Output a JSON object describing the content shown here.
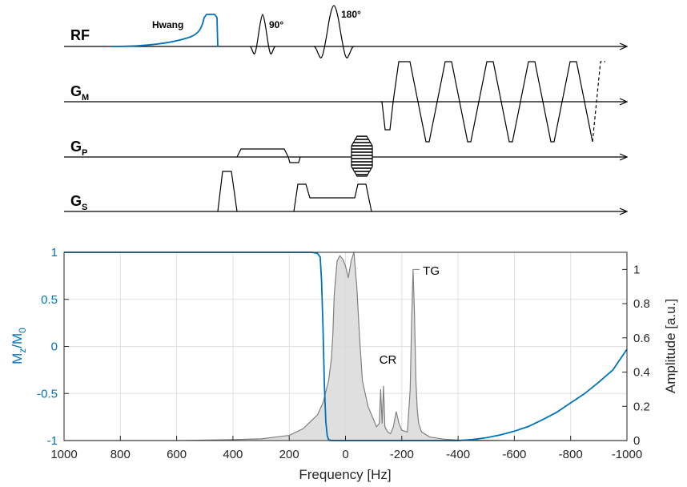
{
  "sequence": {
    "channels": [
      {
        "id": "rf",
        "main": "RF",
        "sub": ""
      },
      {
        "id": "gm",
        "main": "G",
        "sub": "M"
      },
      {
        "id": "gp",
        "main": "G",
        "sub": "P"
      },
      {
        "id": "gs",
        "main": "G",
        "sub": "S"
      }
    ],
    "pulses": {
      "hwang": "Hwang",
      "p90": "90°",
      "p180": "180°"
    }
  },
  "colors": {
    "mz_curve": "#0072BD",
    "spectrum_line": "#808080",
    "spectrum_fill": "#d9d9d9",
    "grid": "#e0e0e0"
  },
  "chart_data": {
    "type": "line",
    "xlabel": "Frequency [Hz]",
    "ylabel_left_main": "M",
    "ylabel_left_sub1": "z",
    "ylabel_left_mid": "/M",
    "ylabel_left_sub2": "0",
    "ylabel_right": "Amplitude [a.u.]",
    "xlim": [
      1000,
      -1000
    ],
    "ylim_left": [
      -1,
      1
    ],
    "ylim_right": [
      0,
      1.1
    ],
    "grid": true,
    "x_ticks": [
      1000,
      800,
      600,
      400,
      200,
      0,
      -200,
      -400,
      -600,
      -800,
      -1000
    ],
    "x_tick_labels": [
      "1000",
      "800",
      "600",
      "400",
      "200",
      "0",
      "-200",
      "-400",
      "-600",
      "-800",
      "-1000"
    ],
    "y_left_ticks": [
      1,
      0.5,
      0,
      -0.5,
      -1
    ],
    "y_left_tick_labels": [
      "1",
      "0.5",
      "0",
      "-0.5",
      "-1"
    ],
    "y_right_ticks": [
      1,
      0.8,
      0.6,
      0.4,
      0.2,
      0
    ],
    "y_right_tick_labels": [
      "1",
      "0.8",
      "0.6",
      "0.4",
      "0.2",
      "0"
    ],
    "annotations": [
      {
        "text": "CR",
        "x": -120,
        "y": 0.45
      },
      {
        "text": "TG",
        "x": -275,
        "y": 0.97
      }
    ],
    "series": [
      {
        "axis": "left",
        "x": [
          1000,
          800,
          600,
          400,
          300,
          200,
          150,
          120,
          100,
          90,
          85,
          80,
          75,
          70,
          65,
          60,
          50,
          40,
          20,
          0,
          -100,
          -300,
          -400,
          -450,
          -500,
          -550,
          -600,
          -650,
          -700,
          -750,
          -800,
          -850,
          -900,
          -950,
          -1000
        ],
        "y": [
          1,
          1,
          1,
          1,
          1,
          1,
          1,
          1,
          0.99,
          0.95,
          0.7,
          0.2,
          -0.4,
          -0.8,
          -0.95,
          -0.99,
          -1,
          -1,
          -1,
          -1,
          -1,
          -1,
          -1,
          -0.99,
          -0.97,
          -0.94,
          -0.9,
          -0.85,
          -0.78,
          -0.7,
          -0.6,
          -0.5,
          -0.38,
          -0.25,
          -0.03
        ]
      },
      {
        "axis": "right",
        "x": [
          1000,
          600,
          400,
          300,
          200,
          150,
          100,
          80,
          60,
          50,
          45,
          40,
          30,
          20,
          10,
          0,
          -10,
          -20,
          -30,
          -40,
          -50,
          -60,
          -80,
          -100,
          -110,
          -120,
          -125,
          -130,
          -135,
          -140,
          -150,
          -160,
          -170,
          -180,
          -190,
          -200,
          -220,
          -230,
          -235,
          -240,
          -245,
          -250,
          -255,
          -260,
          -270,
          -300,
          -350,
          -400,
          -600,
          -1000
        ],
        "y": [
          0,
          0,
          0.005,
          0.01,
          0.03,
          0.07,
          0.15,
          0.22,
          0.35,
          0.48,
          0.62,
          0.85,
          1.05,
          1.08,
          1.06,
          1.02,
          0.95,
          1.05,
          1.1,
          0.9,
          0.6,
          0.35,
          0.2,
          0.12,
          0.08,
          0.1,
          0.3,
          0.1,
          0.32,
          0.08,
          0.05,
          0.04,
          0.08,
          0.17,
          0.1,
          0.06,
          0.05,
          0.3,
          0.7,
          1.0,
          0.75,
          0.35,
          0.18,
          0.1,
          0.05,
          0.02,
          0.008,
          0.003,
          0,
          0
        ]
      }
    ]
  }
}
